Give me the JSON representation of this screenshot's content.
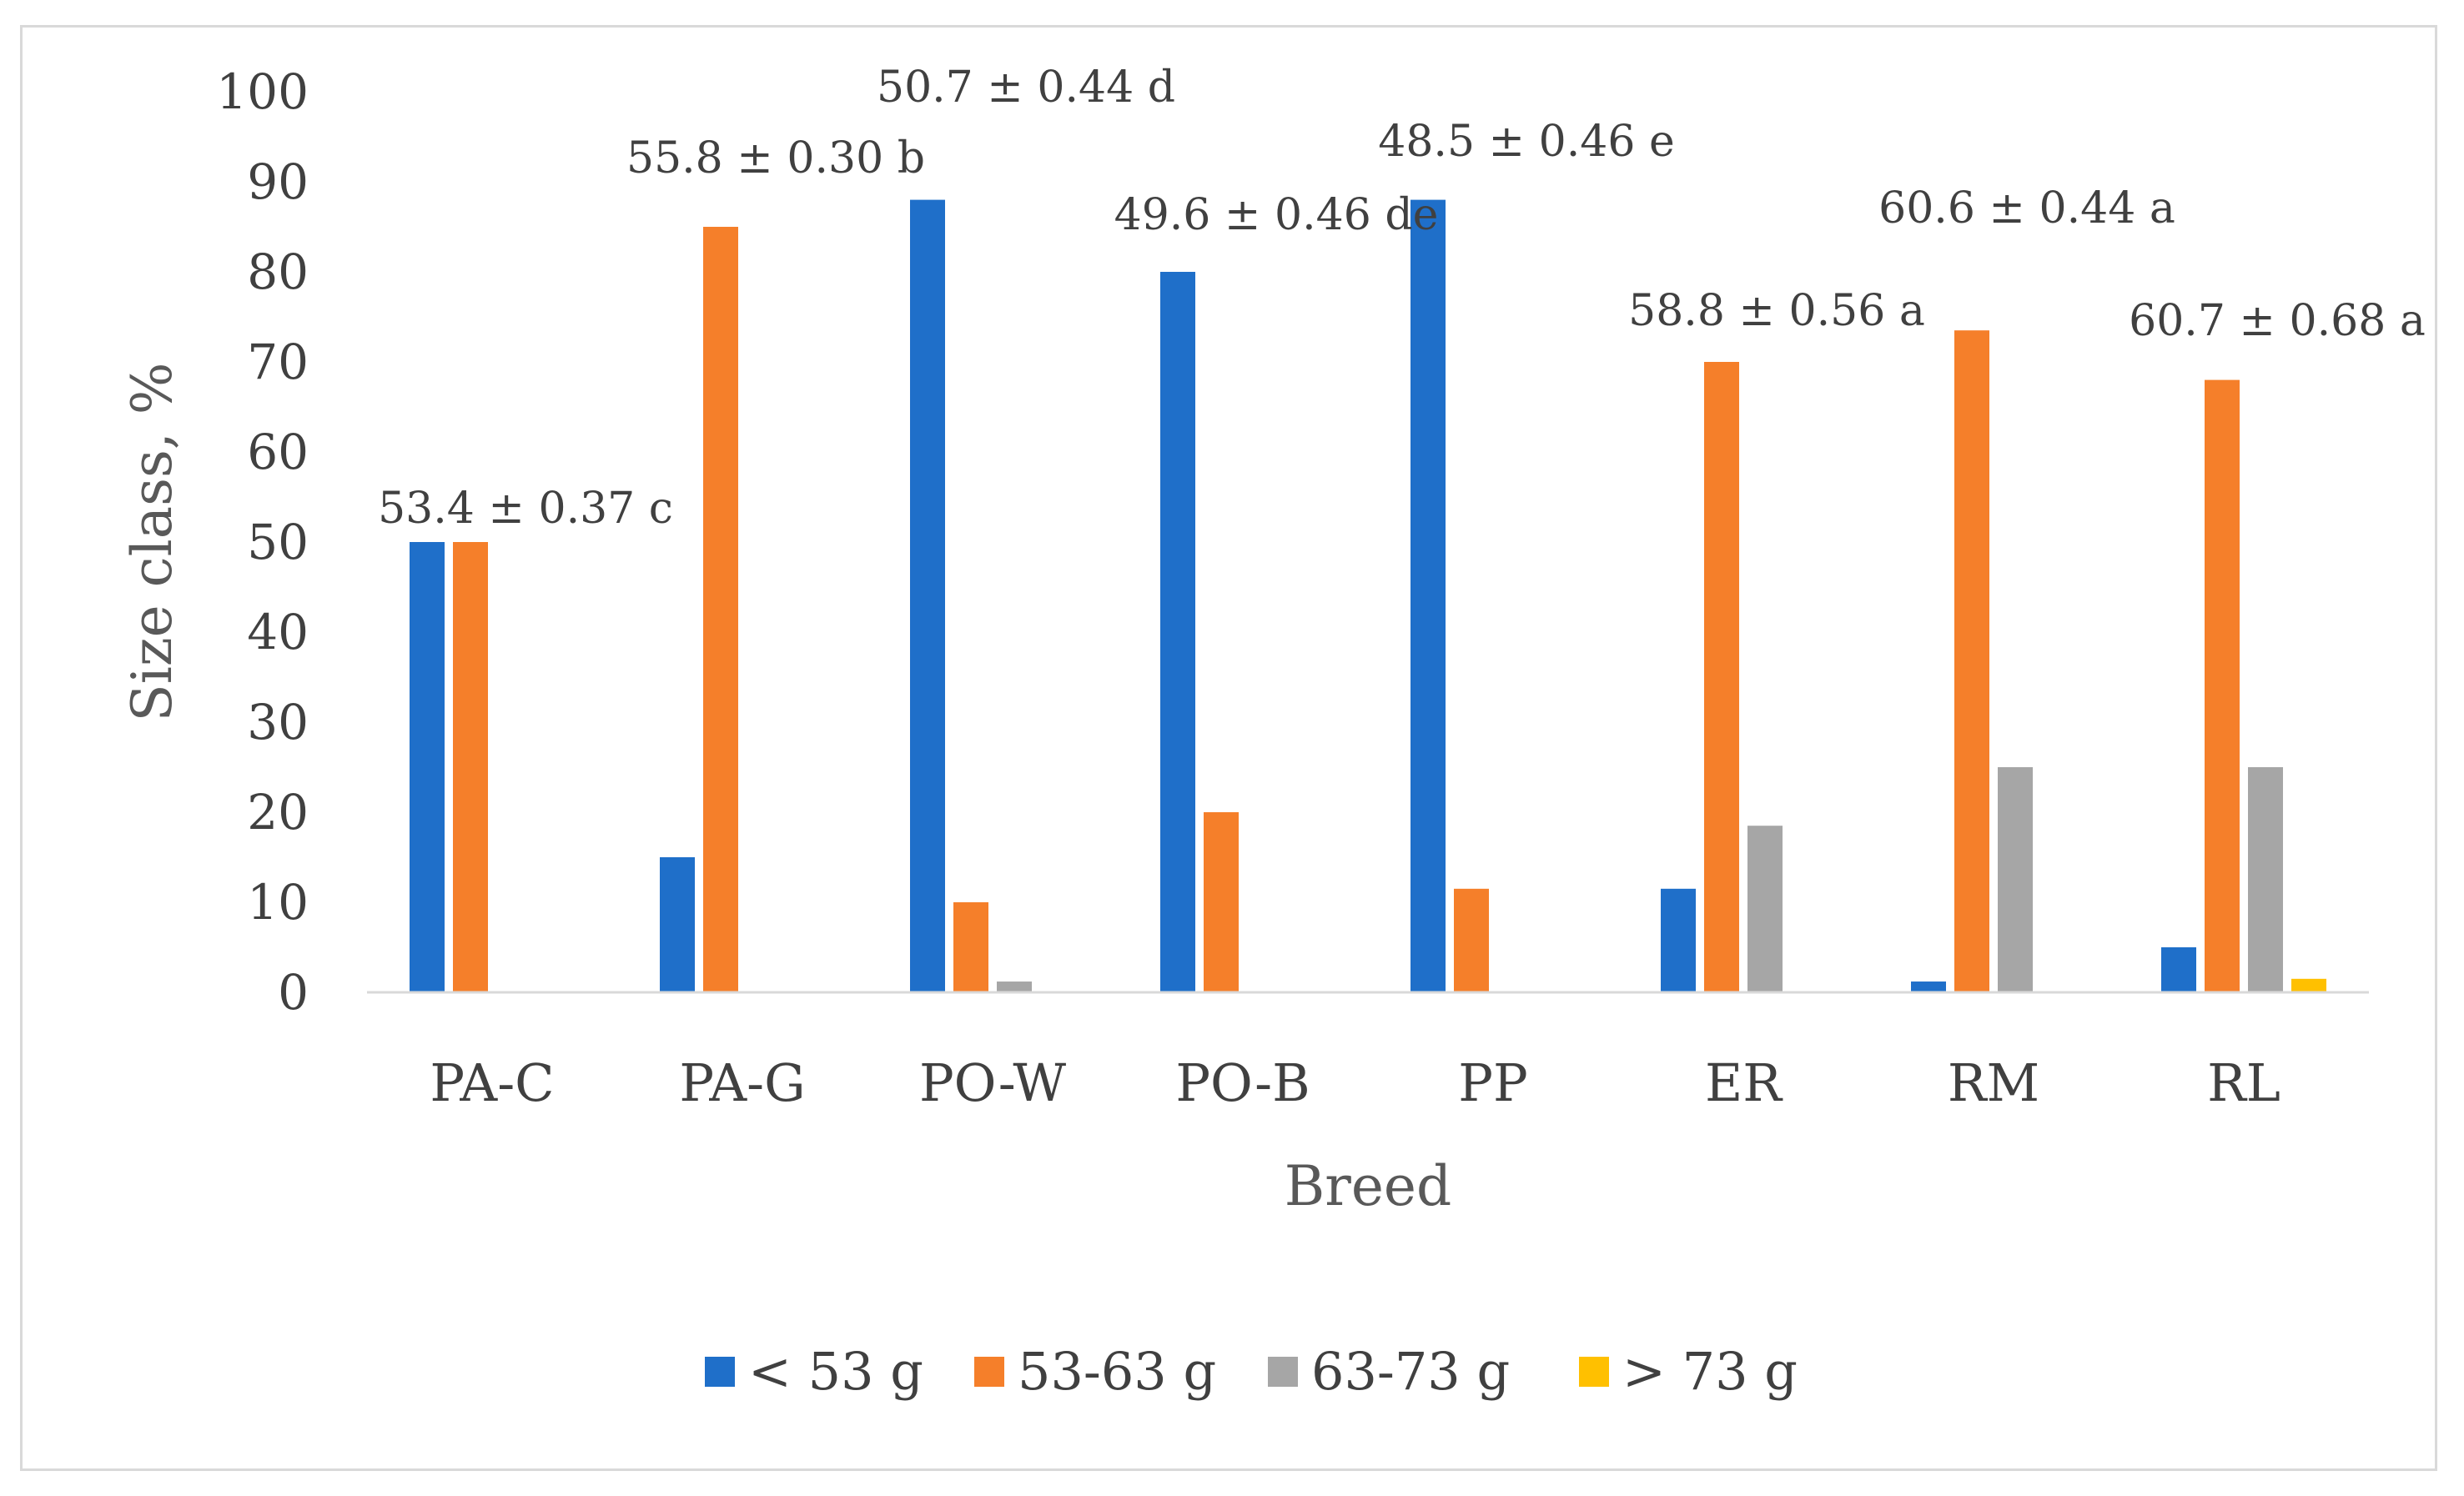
{
  "chart_data": {
    "type": "bar",
    "title": "",
    "xlabel": "Breed",
    "ylabel": "Size class, %",
    "ylim": [
      0,
      100
    ],
    "yticks": [
      0,
      10,
      20,
      30,
      40,
      50,
      60,
      70,
      80,
      90,
      100
    ],
    "grid": false,
    "legend_position": "bottom",
    "categories": [
      "PA-C",
      "PA-G",
      "PO-W",
      "PO-B",
      "PP",
      "ER",
      "RM",
      "RL"
    ],
    "series": [
      {
        "name": "< 53 g",
        "color": "#1f6fc9",
        "values": [
          50,
          15,
          88,
          80,
          88,
          11.5,
          1.2,
          5
        ]
      },
      {
        "name": "53-63 g",
        "color": "#f57f2a",
        "values": [
          50,
          85,
          10,
          20,
          11.5,
          70,
          73.5,
          68
        ]
      },
      {
        "name": "63-73 g",
        "color": "#a6a6a6",
        "values": [
          0,
          0,
          1.2,
          0,
          0,
          18.5,
          25,
          25
        ]
      },
      {
        "name": "> 73 g",
        "color": "#ffc000",
        "values": [
          0,
          0,
          0,
          0,
          0,
          0,
          0,
          1.5
        ]
      }
    ],
    "annotations": [
      {
        "category": "PA-C",
        "text": "53.4 ± 0.37 c"
      },
      {
        "category": "PA-G",
        "text": "55.8 ± 0.30 b"
      },
      {
        "category": "PO-W",
        "text": "50.7 ± 0.44 d"
      },
      {
        "category": "PO-B",
        "text": "49.6 ± 0.46 de"
      },
      {
        "category": "PP",
        "text": "48.5 ± 0.46 e"
      },
      {
        "category": "ER",
        "text": "58.8 ± 0.56 a"
      },
      {
        "category": "RM",
        "text": "60.6 ± 0.44 a"
      },
      {
        "category": "RL",
        "text": "60.7 ± 0.68 a"
      }
    ]
  }
}
